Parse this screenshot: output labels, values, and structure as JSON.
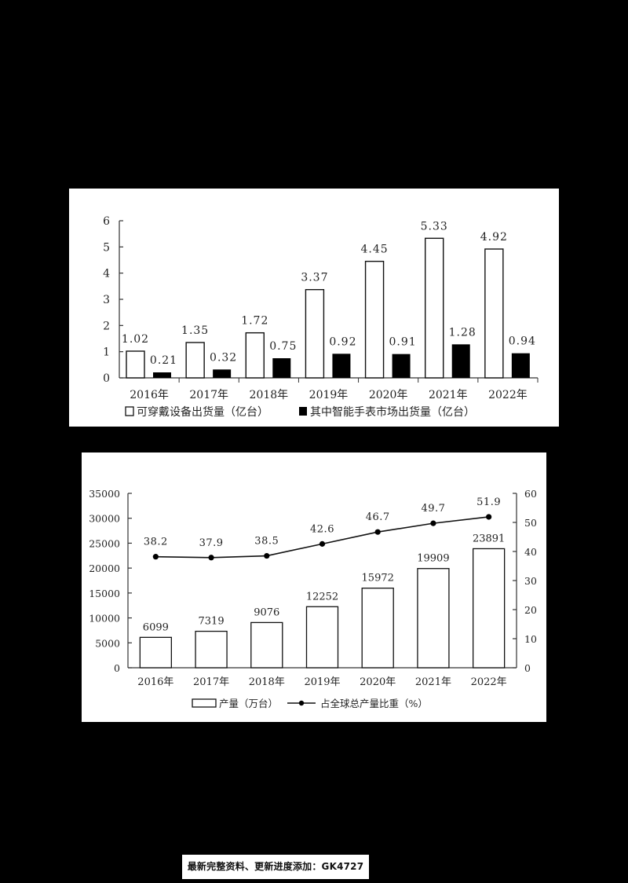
{
  "chart_data": [
    {
      "type": "bar",
      "title": "",
      "categories": [
        "2016年",
        "2017年",
        "2018年",
        "2019年",
        "2020年",
        "2021年",
        "2022年"
      ],
      "series": [
        {
          "name": "可穿戴设备出货量（亿台）",
          "style": "hollow",
          "values": [
            1.02,
            1.35,
            1.72,
            3.37,
            4.45,
            5.33,
            4.92
          ],
          "labels": [
            "1.02",
            "1.35",
            "1.72",
            "3.37",
            "4.45",
            "5.33",
            "4.92"
          ]
        },
        {
          "name": "其中智能手表市场出货量（亿台）",
          "style": "filled",
          "values": [
            0.21,
            0.32,
            0.75,
            0.92,
            0.91,
            1.28,
            0.94
          ],
          "labels": [
            "0.21",
            "0.32",
            "0.75",
            "0.92",
            "0.91",
            "1.28",
            "0.94"
          ]
        }
      ],
      "xlabel": "",
      "ylabel": "",
      "ylim": [
        0,
        6
      ],
      "yticks": [
        0,
        1,
        2,
        3,
        4,
        5,
        6
      ],
      "grid": false,
      "legend_position": "bottom"
    },
    {
      "type": "bar+line",
      "title": "",
      "categories": [
        "2016年",
        "2017年",
        "2018年",
        "2019年",
        "2020年",
        "2021年",
        "2022年"
      ],
      "series": [
        {
          "name": "产量（万台）",
          "type": "bar",
          "axis": "left",
          "values": [
            6099,
            7319,
            9076,
            12252,
            15972,
            19909,
            23891
          ]
        },
        {
          "name": "占全球总产量比重（%）",
          "type": "line",
          "axis": "right",
          "values": [
            38.2,
            37.9,
            38.5,
            42.6,
            46.7,
            49.7,
            51.9
          ],
          "labels": [
            "38.2",
            "37.9",
            "38.5",
            "42.6",
            "46.7",
            "49.7",
            "51.9"
          ]
        }
      ],
      "ylim_left": [
        0,
        35000
      ],
      "yticks_left": [
        0,
        5000,
        10000,
        15000,
        20000,
        25000,
        30000,
        35000
      ],
      "ylim_right": [
        0,
        60
      ],
      "yticks_right": [
        0,
        10,
        20,
        30,
        40,
        50,
        60
      ],
      "grid": false,
      "legend_position": "bottom"
    }
  ],
  "footer": {
    "text": "最新完整资料、更新进度添加：GK4727"
  },
  "colors": {
    "background": "#000000",
    "panel": "#ffffff",
    "ink": "#111111"
  }
}
